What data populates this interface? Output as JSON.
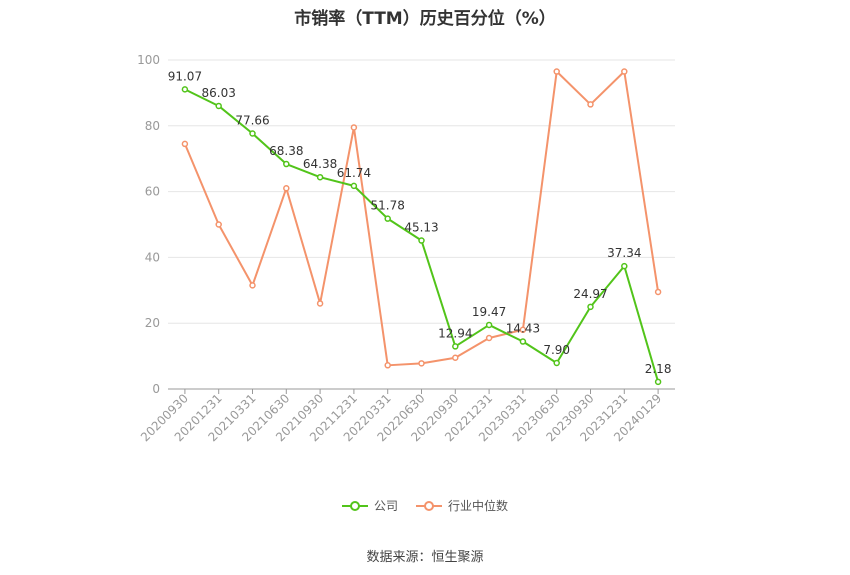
{
  "chart_data": {
    "type": "line",
    "title": "市销率（TTM）历史百分位（%）",
    "categories": [
      "20200930",
      "20201231",
      "20210331",
      "20210630",
      "20210930",
      "20211231",
      "20220331",
      "20220630",
      "20220930",
      "20221231",
      "20230331",
      "20230630",
      "20230930",
      "20231231",
      "20240129"
    ],
    "series": [
      {
        "name": "公司",
        "color": "#52c41a",
        "values": [
          91.07,
          86.03,
          77.66,
          68.38,
          64.38,
          61.74,
          51.78,
          45.13,
          12.94,
          19.47,
          14.43,
          7.9,
          24.97,
          37.34,
          2.18
        ],
        "labels": [
          "91.07",
          "86.03",
          "77.66",
          "68.38",
          "64.38",
          "61.74",
          "51.78",
          "45.13",
          "12.94",
          "19.47",
          "14.43",
          "7.90",
          "24.97",
          "37.34",
          "2.18"
        ]
      },
      {
        "name": "行业中位数",
        "color": "#f4936b",
        "values": [
          74.5,
          50.0,
          31.5,
          61.0,
          26.0,
          79.5,
          7.2,
          7.8,
          9.5,
          15.5,
          18.0,
          96.5,
          86.5,
          96.5,
          29.5
        ]
      }
    ],
    "ylim": [
      0,
      100
    ],
    "yticks": [
      0,
      20,
      40,
      60,
      80,
      100
    ],
    "grid": true,
    "legend_position": "bottom"
  },
  "source_text": "数据来源：恒生聚源"
}
